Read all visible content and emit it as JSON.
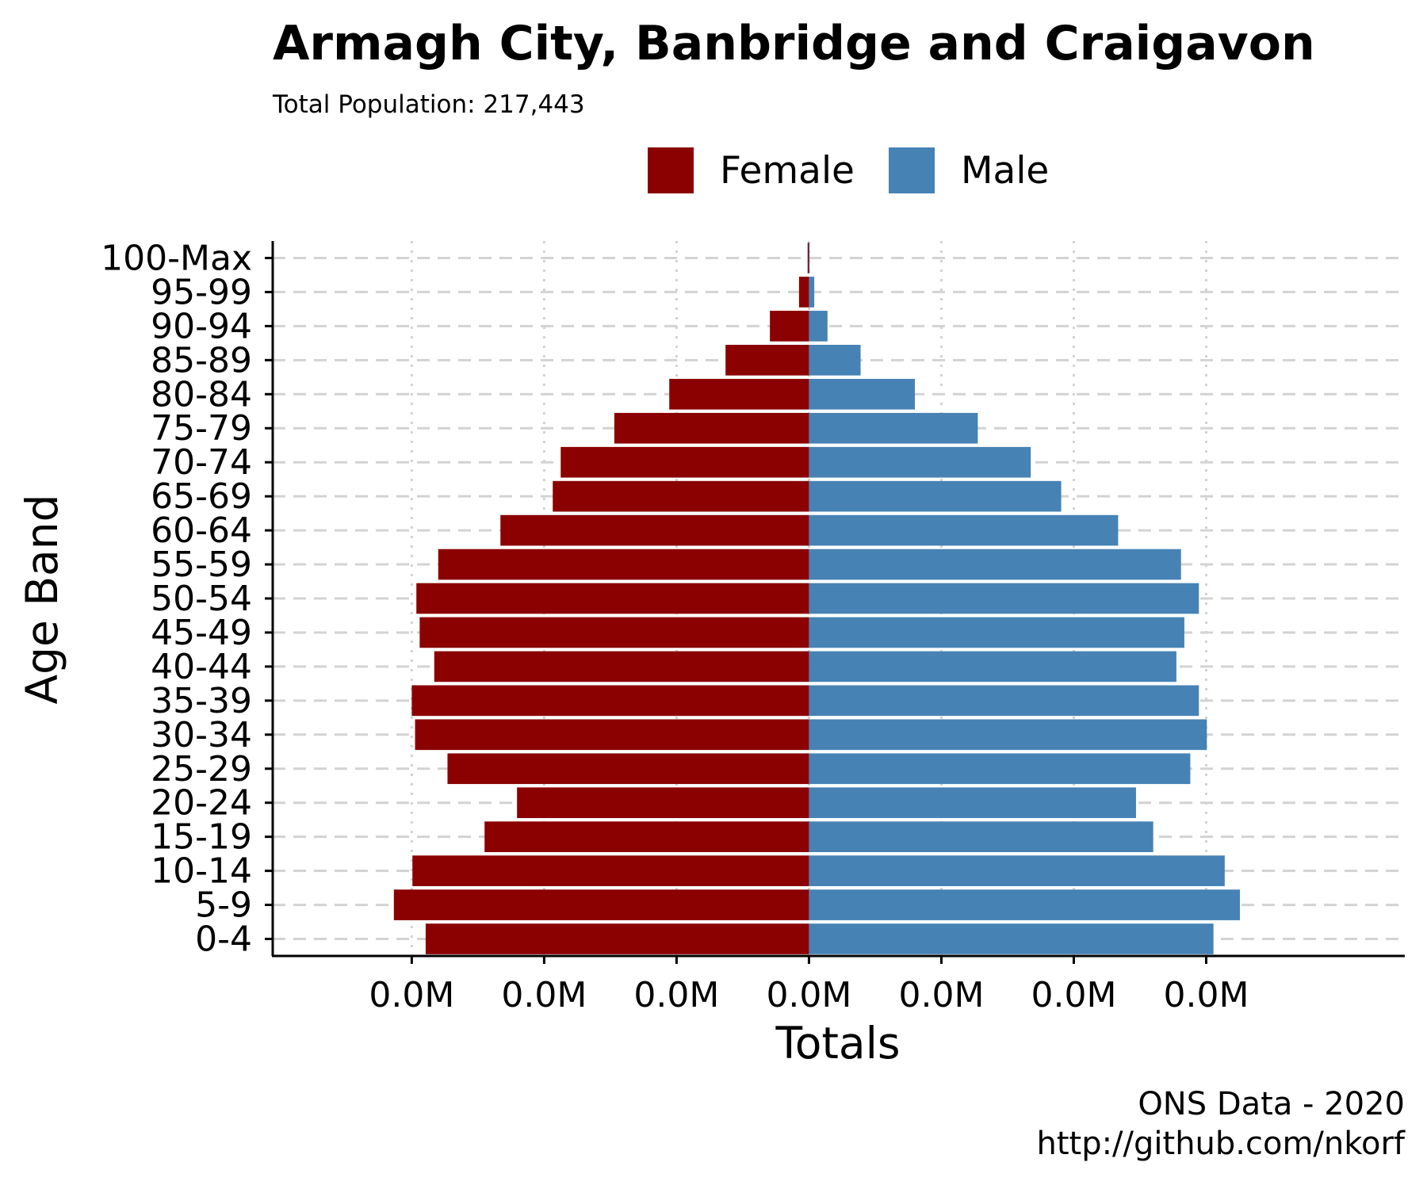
{
  "chart_data": {
    "type": "bar",
    "orientation": "horizontal",
    "title": "Armagh City, Banbridge and Craigavon",
    "subtitle": "Total Population:  217,443",
    "xlabel": "Totals",
    "ylabel": "Age Band",
    "caption": [
      "ONS Data - 2020",
      "http://github.com/nkorf"
    ],
    "legend_position": "top",
    "grid": true,
    "xlim": [
      -0.0081,
      0.009
    ],
    "x_tick_values": [
      -0.006,
      -0.004,
      -0.002,
      0.0,
      0.002,
      0.004,
      0.006
    ],
    "x_tick_labels": [
      "0.0M",
      "0.0M",
      "0.0M",
      "0.0M",
      "0.0M",
      "0.0M",
      "0.0M"
    ],
    "categories": [
      "0-4",
      "5-9",
      "10-14",
      "15-19",
      "20-24",
      "25-29",
      "30-34",
      "35-39",
      "40-44",
      "45-49",
      "50-54",
      "55-59",
      "60-64",
      "65-69",
      "70-74",
      "75-79",
      "80-84",
      "85-89",
      "90-94",
      "95-99",
      "100-Max"
    ],
    "series": [
      {
        "name": "Female",
        "color": "#8b0000",
        "values": [
          -0.00579,
          -0.00627,
          -0.00599,
          -0.0049,
          -0.00441,
          -0.00546,
          -0.00595,
          -0.006,
          -0.00566,
          -0.00588,
          -0.00593,
          -0.0056,
          -0.00466,
          -0.00387,
          -0.00375,
          -0.00294,
          -0.00211,
          -0.00126,
          -0.00059,
          -0.00015,
          -2e-05
        ]
      },
      {
        "name": "Male",
        "color": "#4682b4",
        "values": [
          0.00611,
          0.00651,
          0.00628,
          0.0052,
          0.00494,
          0.00576,
          0.00601,
          0.00589,
          0.00555,
          0.00567,
          0.00589,
          0.00562,
          0.00467,
          0.00381,
          0.00335,
          0.00255,
          0.0016,
          0.00078,
          0.00028,
          8e-05,
          1e-05
        ]
      }
    ]
  }
}
